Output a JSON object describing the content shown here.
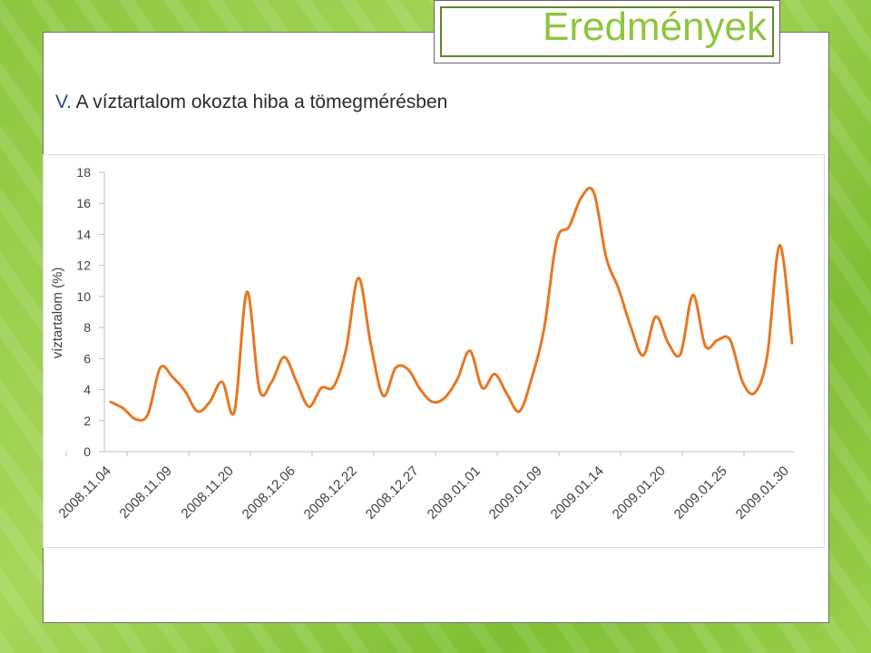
{
  "slide": {
    "title": "Eredmények",
    "subtitle_marker": "V.",
    "subtitle_text": "A víztartalom okozta hiba a tömegmérésben"
  },
  "colors": {
    "line": "#e87722",
    "accent": "#8cc63f",
    "background": "#8ec63f"
  },
  "chart_data": {
    "type": "line",
    "title": "",
    "xlabel": "",
    "ylabel": "víztartalom (%)",
    "ylim": [
      0,
      18
    ],
    "yticks": [
      0,
      2,
      4,
      6,
      8,
      10,
      12,
      14,
      16,
      18
    ],
    "xtick_labels": [
      "2008.11.04",
      "2008.11.09",
      "2008.11.20",
      "2008.12.06",
      "2008.12.22",
      "2008.12.27",
      "2009.01.01",
      "2009.01.09",
      "2009.01.14",
      "2009.01.20",
      "2009.01.25",
      "2009.01.30"
    ],
    "legend": false,
    "grid": false,
    "series": [
      {
        "values": [
          3.2,
          2.8,
          2.1,
          2.4,
          5.4,
          4.8,
          3.9,
          2.6,
          3.2,
          4.5,
          2.6,
          10.3,
          4.0,
          4.5,
          6.1,
          4.5,
          2.9,
          4.1,
          4.2,
          6.6,
          11.2,
          6.9,
          3.6,
          5.4,
          5.3,
          4.0,
          3.2,
          3.5,
          4.7,
          6.5,
          4.1,
          5.0,
          3.7,
          2.6,
          4.8,
          8.0,
          13.6,
          14.5,
          16.4,
          16.7,
          12.5,
          10.5,
          8.0,
          6.2,
          8.7,
          7.0,
          6.3,
          10.1,
          6.8,
          7.2,
          7.2,
          4.5,
          3.8,
          6.2,
          13.3,
          7.0
        ]
      }
    ]
  }
}
